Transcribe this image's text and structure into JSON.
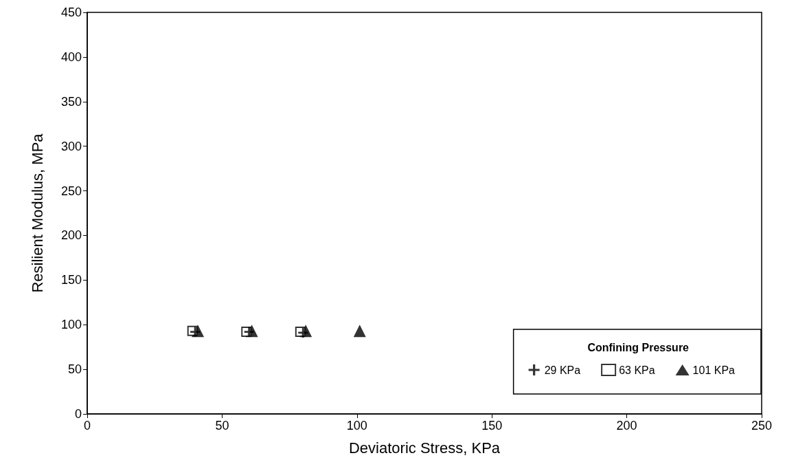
{
  "chart_data": {
    "type": "scatter",
    "xlabel": "Deviatoric Stress, KPa",
    "ylabel": "Resilient Modulus, MPa",
    "legend_title": "Confining Pressure",
    "xlim": [
      0,
      250
    ],
    "xticks": [
      0,
      50,
      100,
      150,
      200,
      250
    ],
    "ylim": [
      0,
      450
    ],
    "yticks": [
      0,
      50,
      100,
      150,
      200,
      250,
      300,
      350,
      400,
      450
    ],
    "grid": false,
    "legend": "bottom right",
    "series": [
      {
        "name": "29 KPa",
        "color": "#000000",
        "marker": "cross",
        "x": [
          40,
          60,
          80
        ],
        "values": [
          92,
          92,
          91
        ]
      },
      {
        "name": "63 KPa",
        "color": "#000000",
        "marker": "square",
        "x": [
          39,
          59,
          79
        ],
        "values": [
          93,
          92,
          92
        ]
      },
      {
        "name": "101 KPa",
        "color": "#000000",
        "marker": "triangle",
        "x": [
          41,
          61,
          81,
          101
        ],
        "values": [
          93,
          93,
          93,
          93
        ]
      }
    ]
  }
}
